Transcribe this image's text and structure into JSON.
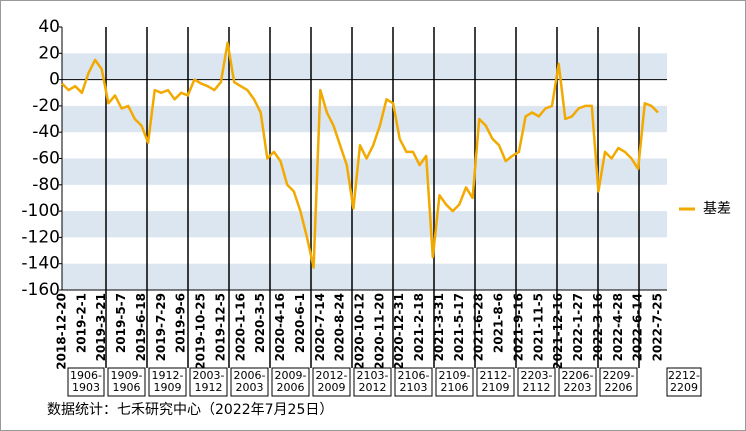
{
  "chart_data": {
    "type": "line",
    "categories": [
      "2018-12-20",
      null,
      null,
      "2019-2-1",
      null,
      null,
      "2019-3-21",
      null,
      null,
      "2019-5-7",
      null,
      null,
      "2019-6-18",
      null,
      null,
      "2019-7-29",
      null,
      null,
      "2019-9-6",
      null,
      null,
      "2019-10-25",
      null,
      null,
      "2019-12-5",
      null,
      null,
      "2020-1-16",
      null,
      null,
      "2020-3-5",
      null,
      null,
      "2020-4-16",
      null,
      null,
      "2020-6-1",
      null,
      null,
      "2020-7-14",
      null,
      null,
      "2020-8-24",
      null,
      null,
      "2020-10-12",
      null,
      null,
      "2020-11-20",
      null,
      null,
      "2020-12-31",
      null,
      null,
      "2021-2-18",
      null,
      null,
      "2021-3-31",
      null,
      null,
      "2021-5-17",
      null,
      null,
      "2021-6-28",
      null,
      null,
      "2021-8-6",
      null,
      null,
      "2021-9-16",
      null,
      null,
      "2021-11-5",
      null,
      null,
      "2021-12-16",
      null,
      null,
      "2022-1-27",
      null,
      null,
      "2022-3-16",
      null,
      null,
      "2022-4-28",
      null,
      null,
      "2022-6-14",
      null,
      null,
      "2022-7-25"
    ],
    "series": [
      {
        "name": "基差",
        "color": "#f2a900",
        "values": [
          -3,
          -8,
          -5,
          -10,
          5,
          15,
          8,
          -18,
          -12,
          -22,
          -20,
          -30,
          -35,
          -48,
          -8,
          -10,
          -8,
          -15,
          -10,
          -12,
          0,
          -3,
          -5,
          -8,
          -2,
          28,
          -2,
          -5,
          -8,
          -15,
          -25,
          -60,
          -55,
          -62,
          -80,
          -85,
          -100,
          -120,
          -143,
          -8,
          -25,
          -35,
          -50,
          -65,
          -98,
          -50,
          -60,
          -50,
          -35,
          -15,
          -18,
          -45,
          -55,
          -55,
          -65,
          -58,
          -135,
          -88,
          -95,
          -100,
          -95,
          -82,
          -90,
          -30,
          -35,
          -45,
          -50,
          -62,
          -58,
          -55,
          -28,
          -25,
          -28,
          -22,
          -20,
          12,
          -30,
          -28,
          -22,
          -20,
          -20,
          -85,
          -55,
          -60,
          -52,
          -55,
          -60,
          -68,
          -18,
          -20,
          -25
        ]
      }
    ],
    "ylim": [
      -160,
      40
    ],
    "yticks": [
      40,
      20,
      0,
      -20,
      -40,
      -60,
      -80,
      -100,
      -120,
      -140,
      -160
    ],
    "bands": true,
    "legend": "right",
    "spreads": [
      [
        "1906-",
        "1903"
      ],
      [
        "1909-",
        "1906"
      ],
      [
        "1912-",
        "1909"
      ],
      [
        "2003-",
        "1912"
      ],
      [
        "2006-",
        "2003"
      ],
      [
        "2009-",
        "2006"
      ],
      [
        "2012-",
        "2009"
      ],
      [
        "2103-",
        "2012"
      ],
      [
        "2106-",
        "2103"
      ],
      [
        "2109-",
        "2106"
      ],
      [
        "2112-",
        "2109"
      ],
      [
        "2203-",
        "2112"
      ],
      [
        "2206-",
        "2203"
      ],
      [
        "2209-",
        "2206"
      ],
      [
        "2212-",
        "2209"
      ]
    ],
    "source": "数据统计：七禾研究中心（2022年7月25日）"
  }
}
